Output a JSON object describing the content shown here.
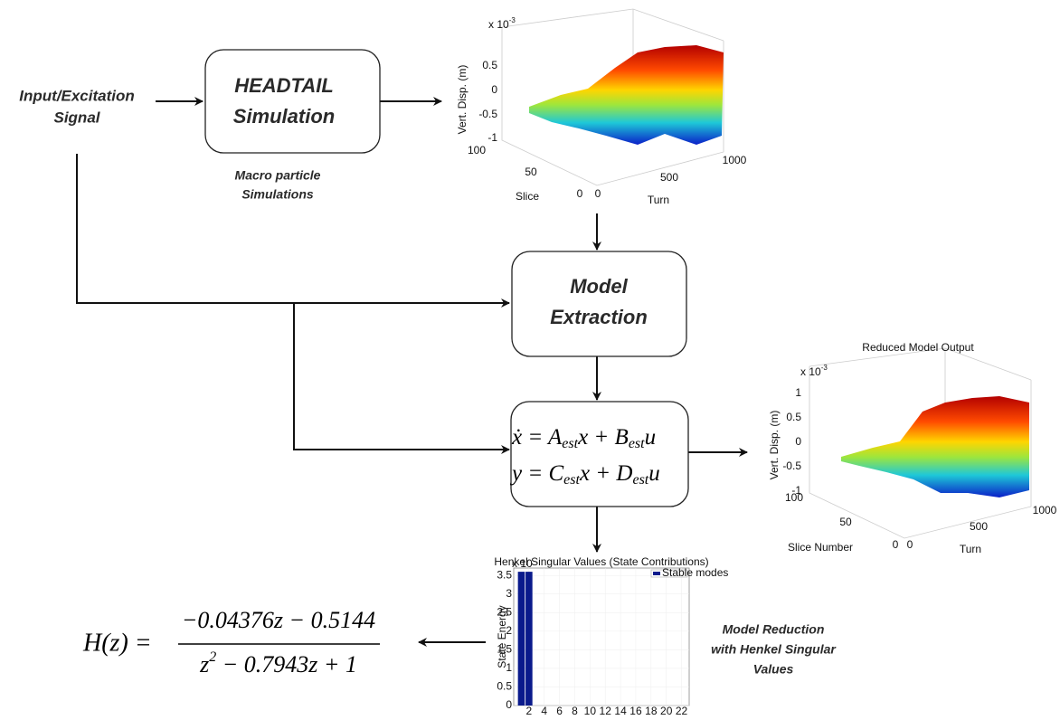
{
  "input": {
    "label_lines": [
      "Input/Excitation",
      "Signal"
    ]
  },
  "simulation": {
    "label_lines": [
      "HEADTAIL",
      "Simulation"
    ],
    "caption_lines": [
      "Macro particle",
      "Simulations"
    ]
  },
  "extraction": {
    "label_lines": [
      "Model",
      "Extraction"
    ]
  },
  "state_space": {
    "line1": [
      "ẋ = A",
      "est",
      "x + B",
      "est",
      "u"
    ],
    "line2": [
      "y = C",
      "est",
      "x + D",
      "est",
      "u"
    ]
  },
  "reduction_caption": [
    "Model Reduction",
    "with Henkel Singular",
    "Values"
  ],
  "transfer_function": {
    "lhs": "H(z) =",
    "numerator": "−0.04376z − 0.5144",
    "denominator": [
      "z",
      "2",
      " − 0.7943z + 1"
    ]
  },
  "simulation_plot": {
    "exponent": [
      "x 10",
      "-3"
    ],
    "z_label": "Vert. Disp. (m)",
    "z_ticks": [
      "0.5",
      "0",
      "-0.5",
      "-1"
    ],
    "slice_label": "Slice",
    "slice_ticks": [
      "100",
      "50",
      "0"
    ],
    "turn_label": "Turn",
    "turn_ticks": [
      "0",
      "500",
      "1000"
    ]
  },
  "reduced_plot": {
    "title": "Reduced Model Output",
    "exponent": [
      "x 10",
      "-3"
    ],
    "z_label": "Vert. Disp. (m)",
    "z_ticks": [
      "1",
      "0.5",
      "0",
      "-0.5",
      "-1"
    ],
    "slice_label": "Slice Number",
    "slice_ticks": [
      "100",
      "50",
      "0"
    ],
    "turn_label": "Turn",
    "turn_ticks": [
      "0",
      "500",
      "1000"
    ]
  },
  "henkel_plot": {
    "type": "bar",
    "title": "Henkel Singular Values (State Contributions)",
    "exponent": "x 10",
    "y_label": "State Energy",
    "legend": "Stable modes",
    "x": [
      1,
      2
    ],
    "values": [
      3.6,
      3.6
    ],
    "color": "#0a1a8c",
    "xlim": [
      0,
      23
    ],
    "xticks": [
      2,
      4,
      6,
      8,
      10,
      12,
      14,
      16,
      18,
      20,
      22
    ],
    "ylim": [
      0,
      3.7
    ],
    "yticks": [
      0,
      0.5,
      1,
      1.5,
      2,
      2.5,
      3,
      3.5
    ]
  }
}
